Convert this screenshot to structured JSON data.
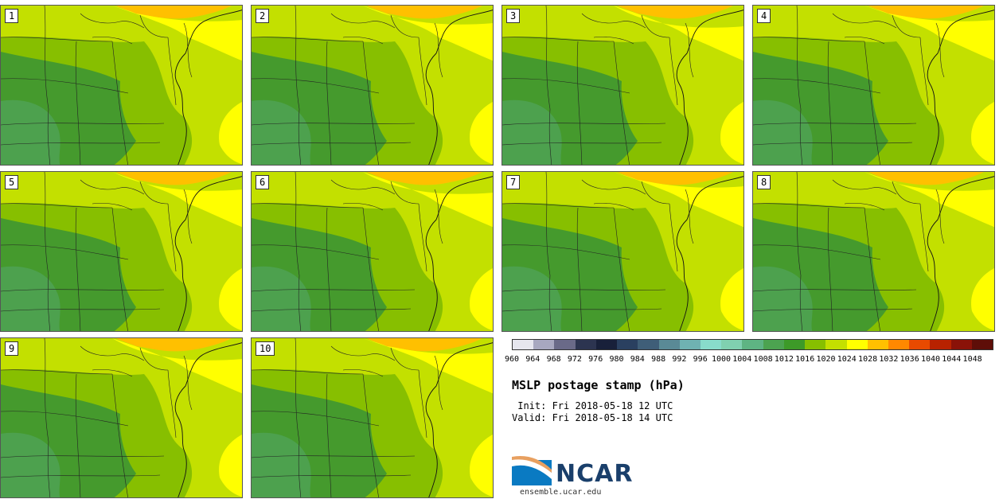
{
  "panels": [
    {
      "label": "1"
    },
    {
      "label": "2"
    },
    {
      "label": "3"
    },
    {
      "label": "4"
    },
    {
      "label": "5"
    },
    {
      "label": "6"
    },
    {
      "label": "7"
    },
    {
      "label": "8"
    },
    {
      "label": "9"
    },
    {
      "label": "10"
    }
  ],
  "colorbar": {
    "ticks": [
      "960",
      "964",
      "968",
      "972",
      "976",
      "980",
      "984",
      "988",
      "992",
      "996",
      "1000",
      "1004",
      "1008",
      "1012",
      "1016",
      "1020",
      "1024",
      "1028",
      "1032",
      "1036",
      "1040",
      "1044",
      "1048"
    ],
    "colors": [
      "#e6e6ee",
      "#a8a8c0",
      "#6a6a88",
      "#2c3450",
      "#18203a",
      "#2a4060",
      "#3f5e78",
      "#5a8a96",
      "#6fb2b2",
      "#88dccb",
      "#80d0b0",
      "#5eb483",
      "#4ca350",
      "#3d9a28",
      "#87bf00",
      "#c4df00",
      "#ffff00",
      "#ffc000",
      "#ff8800",
      "#e84a00",
      "#b82200",
      "#8a1208",
      "#5e0e08"
    ]
  },
  "map_colors": {
    "land_low": "#4da14e",
    "dark_green": "#459a2d",
    "mid_green": "#87bf00",
    "yellow_green": "#c3e000",
    "yellow": "#ffff00",
    "orange": "#ffc000"
  },
  "title": "MSLP postage stamp (hPa)",
  "init": " Init: Fri 2018-05-18 12 UTC",
  "valid": "Valid: Fri 2018-05-18 14 UTC",
  "logo": {
    "text": "NCAR",
    "website": "ensemble.ucar.edu"
  }
}
